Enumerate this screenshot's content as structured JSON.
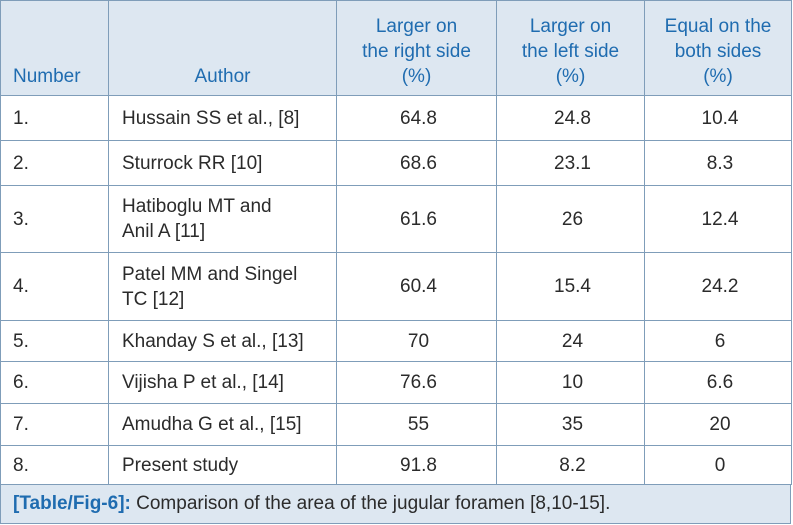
{
  "table": {
    "headers": {
      "number": "Number",
      "author": "Author",
      "right_line1": "Larger on",
      "right_line2": "the right side",
      "right_line3": "(%)",
      "left_line1": "Larger on",
      "left_line2": "the left side",
      "left_line3": "(%)",
      "equal_line1": "Equal on the",
      "equal_line2": "both sides",
      "equal_line3": "(%)"
    },
    "rows": [
      {
        "number": "1.",
        "author_line1": "Hussain SS et al., [8]",
        "author_line2": "",
        "right": "64.8",
        "left": "24.8",
        "equal": "10.4"
      },
      {
        "number": "2.",
        "author_line1": "Sturrock RR [10]",
        "author_line2": "",
        "right": "68.6",
        "left": "23.1",
        "equal": "8.3"
      },
      {
        "number": "3.",
        "author_line1": "Hatiboglu MT and",
        "author_line2": "Anil A [11]",
        "right": "61.6",
        "left": "26",
        "equal": "12.4"
      },
      {
        "number": "4.",
        "author_line1": "Patel MM and Singel",
        "author_line2": "TC [12]",
        "right": "60.4",
        "left": "15.4",
        "equal": "24.2"
      },
      {
        "number": "5.",
        "author_line1": "Khanday S et al., [13]",
        "author_line2": "",
        "right": "70",
        "left": "24",
        "equal": "6"
      },
      {
        "number": "6.",
        "author_line1": "Vijisha P et al., [14]",
        "author_line2": "",
        "right": "76.6",
        "left": "10",
        "equal": "6.6"
      },
      {
        "number": "7.",
        "author_line1": "Amudha G et al., [15]",
        "author_line2": "",
        "right": "55",
        "left": "35",
        "equal": "20"
      },
      {
        "number": "8.",
        "author_line1": "Present study",
        "author_line2": "",
        "right": "91.8",
        "left": "8.2",
        "equal": "0"
      }
    ]
  },
  "caption": {
    "label": "[Table/Fig-6]:",
    "text": " Comparison of the area of the jugular foramen [8,10-15]."
  },
  "colors": {
    "header_bg": "#dde7f1",
    "header_text": "#1f6cb0",
    "border": "#7f9db9",
    "body_text": "#2b2b2b"
  }
}
